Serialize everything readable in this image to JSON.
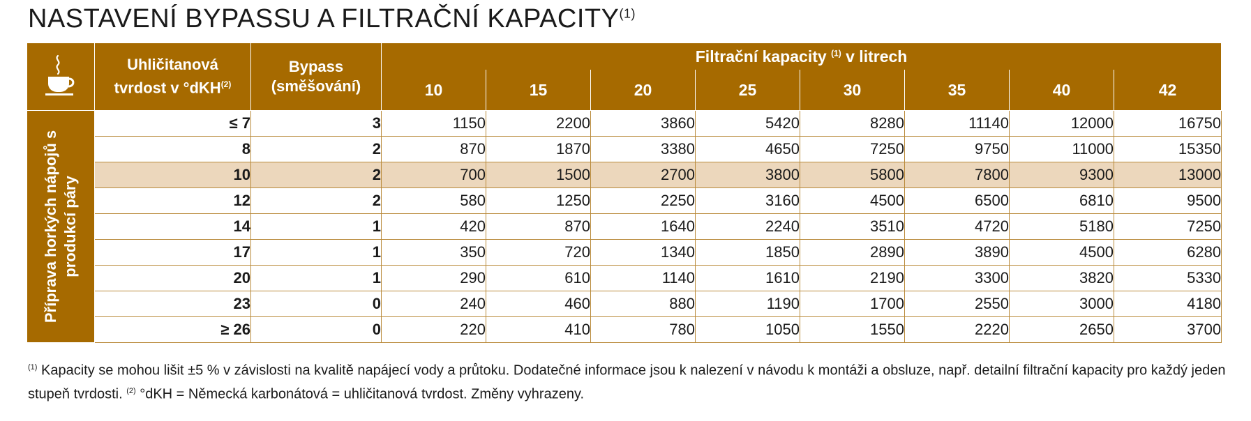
{
  "title": {
    "text": "NASTAVENÍ BYPASSU A FILTRAČNÍ KAPACITY",
    "sup": "(1)"
  },
  "header": {
    "hardness_line1": "Uhličitanová",
    "hardness_line2": "tvrdost v °dKH",
    "hardness_sup": "(2)",
    "bypass_line1": "Bypass",
    "bypass_line2": "(směšování)",
    "capacity_pre": "Filtrační kapacity",
    "capacity_sup": "(1)",
    "capacity_post": "v litrech",
    "capacities": [
      "10",
      "15",
      "20",
      "25",
      "30",
      "35",
      "40",
      "42"
    ]
  },
  "side_label": {
    "line1": "Příprava horkých nápojů s",
    "line2": "produkcí páry"
  },
  "icon": "hot-cup-icon",
  "colors": {
    "header_bg": "#a66a00",
    "highlight_row": "#ecd7bc",
    "grid": "#b98a3a"
  },
  "rows": [
    {
      "hardness": "≤ 7",
      "bypass": "3",
      "values": [
        "1150",
        "2200",
        "3860",
        "5420",
        "8280",
        "11140",
        "12000",
        "16750"
      ]
    },
    {
      "hardness": "8",
      "bypass": "2",
      "values": [
        "870",
        "1870",
        "3380",
        "4650",
        "7250",
        "9750",
        "11000",
        "15350"
      ]
    },
    {
      "hardness": "10",
      "bypass": "2",
      "values": [
        "700",
        "1500",
        "2700",
        "3800",
        "5800",
        "7800",
        "9300",
        "13000"
      ],
      "highlighted": true
    },
    {
      "hardness": "12",
      "bypass": "2",
      "values": [
        "580",
        "1250",
        "2250",
        "3160",
        "4500",
        "6500",
        "6810",
        "9500"
      ]
    },
    {
      "hardness": "14",
      "bypass": "1",
      "values": [
        "420",
        "870",
        "1640",
        "2240",
        "3510",
        "4720",
        "5180",
        "7250"
      ]
    },
    {
      "hardness": "17",
      "bypass": "1",
      "values": [
        "350",
        "720",
        "1340",
        "1850",
        "2890",
        "3890",
        "4500",
        "6280"
      ]
    },
    {
      "hardness": "20",
      "bypass": "1",
      "values": [
        "290",
        "610",
        "1140",
        "1610",
        "2190",
        "3300",
        "3820",
        "5330"
      ]
    },
    {
      "hardness": "23",
      "bypass": "0",
      "values": [
        "240",
        "460",
        "880",
        "1190",
        "1700",
        "2550",
        "3000",
        "4180"
      ]
    },
    {
      "hardness": "≥ 26",
      "bypass": "0",
      "values": [
        "220",
        "410",
        "780",
        "1050",
        "1550",
        "2220",
        "2650",
        "3700"
      ]
    }
  ],
  "footnote": {
    "sup1": "(1)",
    "text1": " Kapacity se mohou lišit ±5 % v závislosti na kvalitě napájecí vody a průtoku. Dodatečné informace jsou k nalezení v návodu k montáži a obsluze, např. detailní filtrační kapacity pro každý jeden stupeň tvrdosti. ",
    "sup2": "(2)",
    "text2": " °dKH = Německá karbonátová = uhličitanová tvrdost. Změny vyhrazeny."
  }
}
